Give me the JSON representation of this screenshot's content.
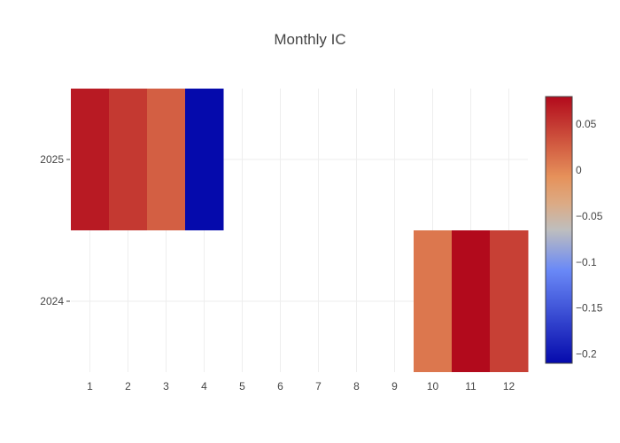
{
  "chart_data": {
    "type": "heatmap",
    "title": "Monthly IC",
    "xlabel": "",
    "ylabel": "",
    "x": [
      1,
      2,
      3,
      4,
      5,
      6,
      7,
      8,
      9,
      10,
      11,
      12
    ],
    "y": [
      2024,
      2025
    ],
    "x_tick_labels": [
      "1",
      "2",
      "3",
      "4",
      "5",
      "6",
      "7",
      "8",
      "9",
      "10",
      "11",
      "12"
    ],
    "y_tick_labels": [
      "2024",
      "2025"
    ],
    "z": [
      [
        null,
        null,
        null,
        null,
        null,
        null,
        null,
        null,
        null,
        0.01,
        0.08,
        0.045
      ],
      [
        0.07,
        0.05,
        0.025,
        -0.21,
        null,
        null,
        null,
        null,
        null,
        null,
        null,
        null
      ]
    ],
    "zlim": [
      -0.21,
      0.08
    ],
    "colorscale": "RdBu_r",
    "colorbar": {
      "tick_values": [
        0.05,
        0,
        -0.05,
        -0.1,
        -0.15,
        -0.2
      ],
      "tick_labels": [
        "0.05",
        "0",
        "−0.05",
        "−0.1",
        "−0.15",
        "−0.2"
      ]
    },
    "grid": true,
    "legend": "colorbar-right"
  }
}
